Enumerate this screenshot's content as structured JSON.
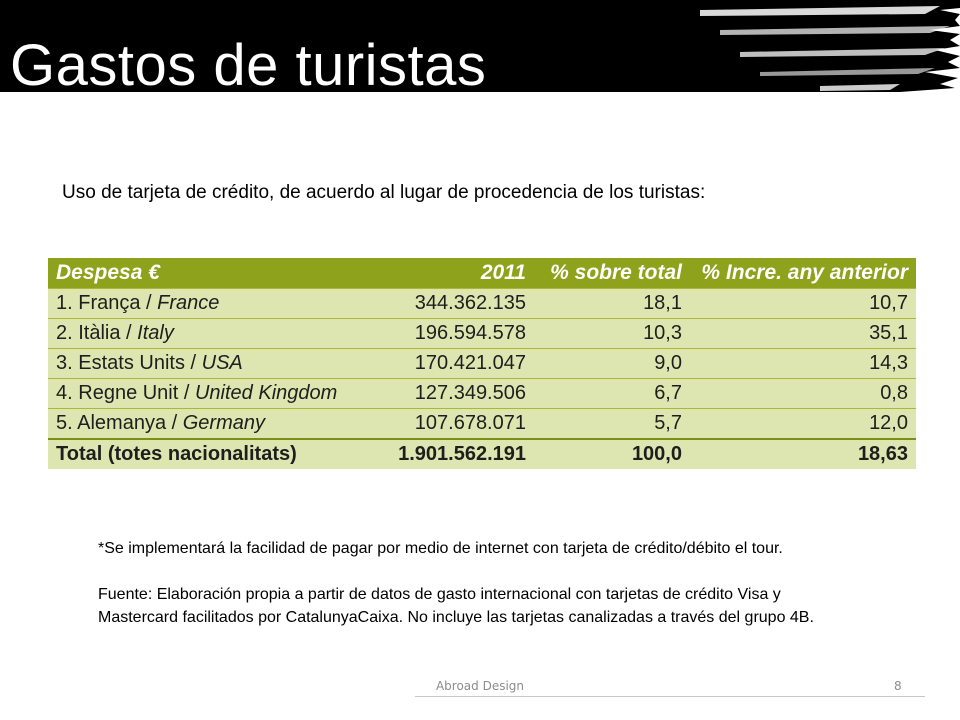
{
  "slide": {
    "title": "Gastos de turistas",
    "intro": "Uso de tarjeta de crédito, de acuerdo al lugar de procedencia de los turistas:"
  },
  "table": {
    "headers": [
      "Despesa €",
      "2011",
      "% sobre total",
      "% Incre. any anterior"
    ],
    "rows": [
      {
        "rank": "1.",
        "name_ca": "França",
        "name_en": "France",
        "value_2011": "344.362.135",
        "pct_total": "18,1",
        "pct_incr": "10,7"
      },
      {
        "rank": "2.",
        "name_ca": "Itàlia",
        "name_en": "Italy",
        "value_2011": "196.594.578",
        "pct_total": "10,3",
        "pct_incr": "35,1"
      },
      {
        "rank": "3.",
        "name_ca": "Estats Units",
        "name_en": "USA",
        "value_2011": "170.421.047",
        "pct_total": "9,0",
        "pct_incr": "14,3"
      },
      {
        "rank": "4.",
        "name_ca": "Regne Unit",
        "name_en": "United Kingdom",
        "value_2011": "127.349.506",
        "pct_total": "6,7",
        "pct_incr": "0,8"
      },
      {
        "rank": "5.",
        "name_ca": "Alemanya",
        "name_en": "Germany",
        "value_2011": "107.678.071",
        "pct_total": "5,7",
        "pct_incr": "12,0"
      }
    ],
    "total": {
      "label": "Total (totes nacionalitats)",
      "value_2011": "1.901.562.191",
      "pct_total": "100,0",
      "pct_incr": "18,63"
    }
  },
  "notes": {
    "note": "*Se implementará la facilidad de pagar por medio de internet con tarjeta de crédito/débito el tour.",
    "source": "Fuente: Elaboración propia a partir de datos de gasto internacional con tarjetas de crédito Visa y Mastercard facilitados por CatalunyaCaixa. No incluye las tarjetas canalizadas a través del grupo 4B."
  },
  "footer": {
    "label": "Abroad Design",
    "page": "8"
  },
  "colors": {
    "header_green": "#8ea21c",
    "row_green": "#dde6b0",
    "banner": "#000000"
  }
}
